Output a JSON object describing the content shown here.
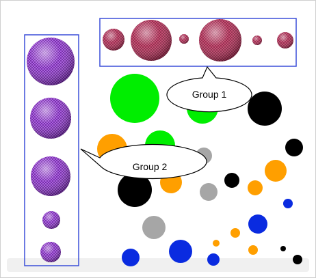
{
  "callouts": {
    "group1": {
      "label": "Group 1"
    },
    "group2": {
      "label": "Group 2"
    }
  },
  "colors": {
    "frame": "#cfcfcf",
    "group_box": "#3b4fd8",
    "sphere_group1": "#b8345d",
    "sphere_group2": "#8c2fc8",
    "green": "#00ee00",
    "black": "#000000",
    "orange": "#ff9f00",
    "gray": "#a6a6a6",
    "blue": "#0a2be0"
  }
}
